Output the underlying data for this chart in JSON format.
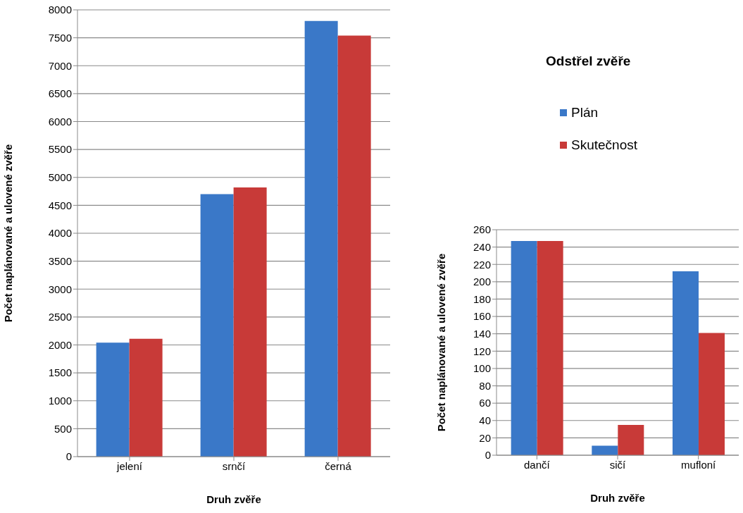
{
  "chart_data": [
    {
      "type": "bar",
      "categories": [
        "jelení",
        "srnčí",
        "černá"
      ],
      "xlabel": "Druh zvěře",
      "ylabel": "Počet naplánované  a ulovené zvěře",
      "series": [
        {
          "color": "#3a78c8",
          "values": [
            2040,
            4700,
            7800
          ]
        },
        {
          "color": "#c83a38",
          "values": [
            2110,
            4820,
            7540
          ]
        }
      ],
      "ylim": [
        0,
        8000
      ],
      "yticks": [
        0,
        500,
        1000,
        1500,
        2000,
        2500,
        3000,
        3500,
        4000,
        4500,
        5000,
        5500,
        6000,
        6500,
        7000,
        7500,
        8000
      ],
      "grid": "y"
    },
    {
      "type": "bar",
      "title": "Odstřel  zvěře",
      "categories": [
        "dančí",
        "sičí",
        "mufloní"
      ],
      "xlabel": "Druh zvěře",
      "ylabel": "Počet naplánované  a ulovené zvěře",
      "series": [
        {
          "name": "Plán",
          "color": "#3a78c8",
          "values": [
            247,
            11,
            212
          ]
        },
        {
          "name": "Skutečnost",
          "color": "#c83a38",
          "values": [
            247,
            35,
            141
          ]
        }
      ],
      "ylim": [
        0,
        260
      ],
      "yticks": [
        0,
        20,
        40,
        60,
        80,
        100,
        120,
        140,
        160,
        180,
        200,
        220,
        240,
        260
      ],
      "grid": "y",
      "legend": "top"
    }
  ]
}
